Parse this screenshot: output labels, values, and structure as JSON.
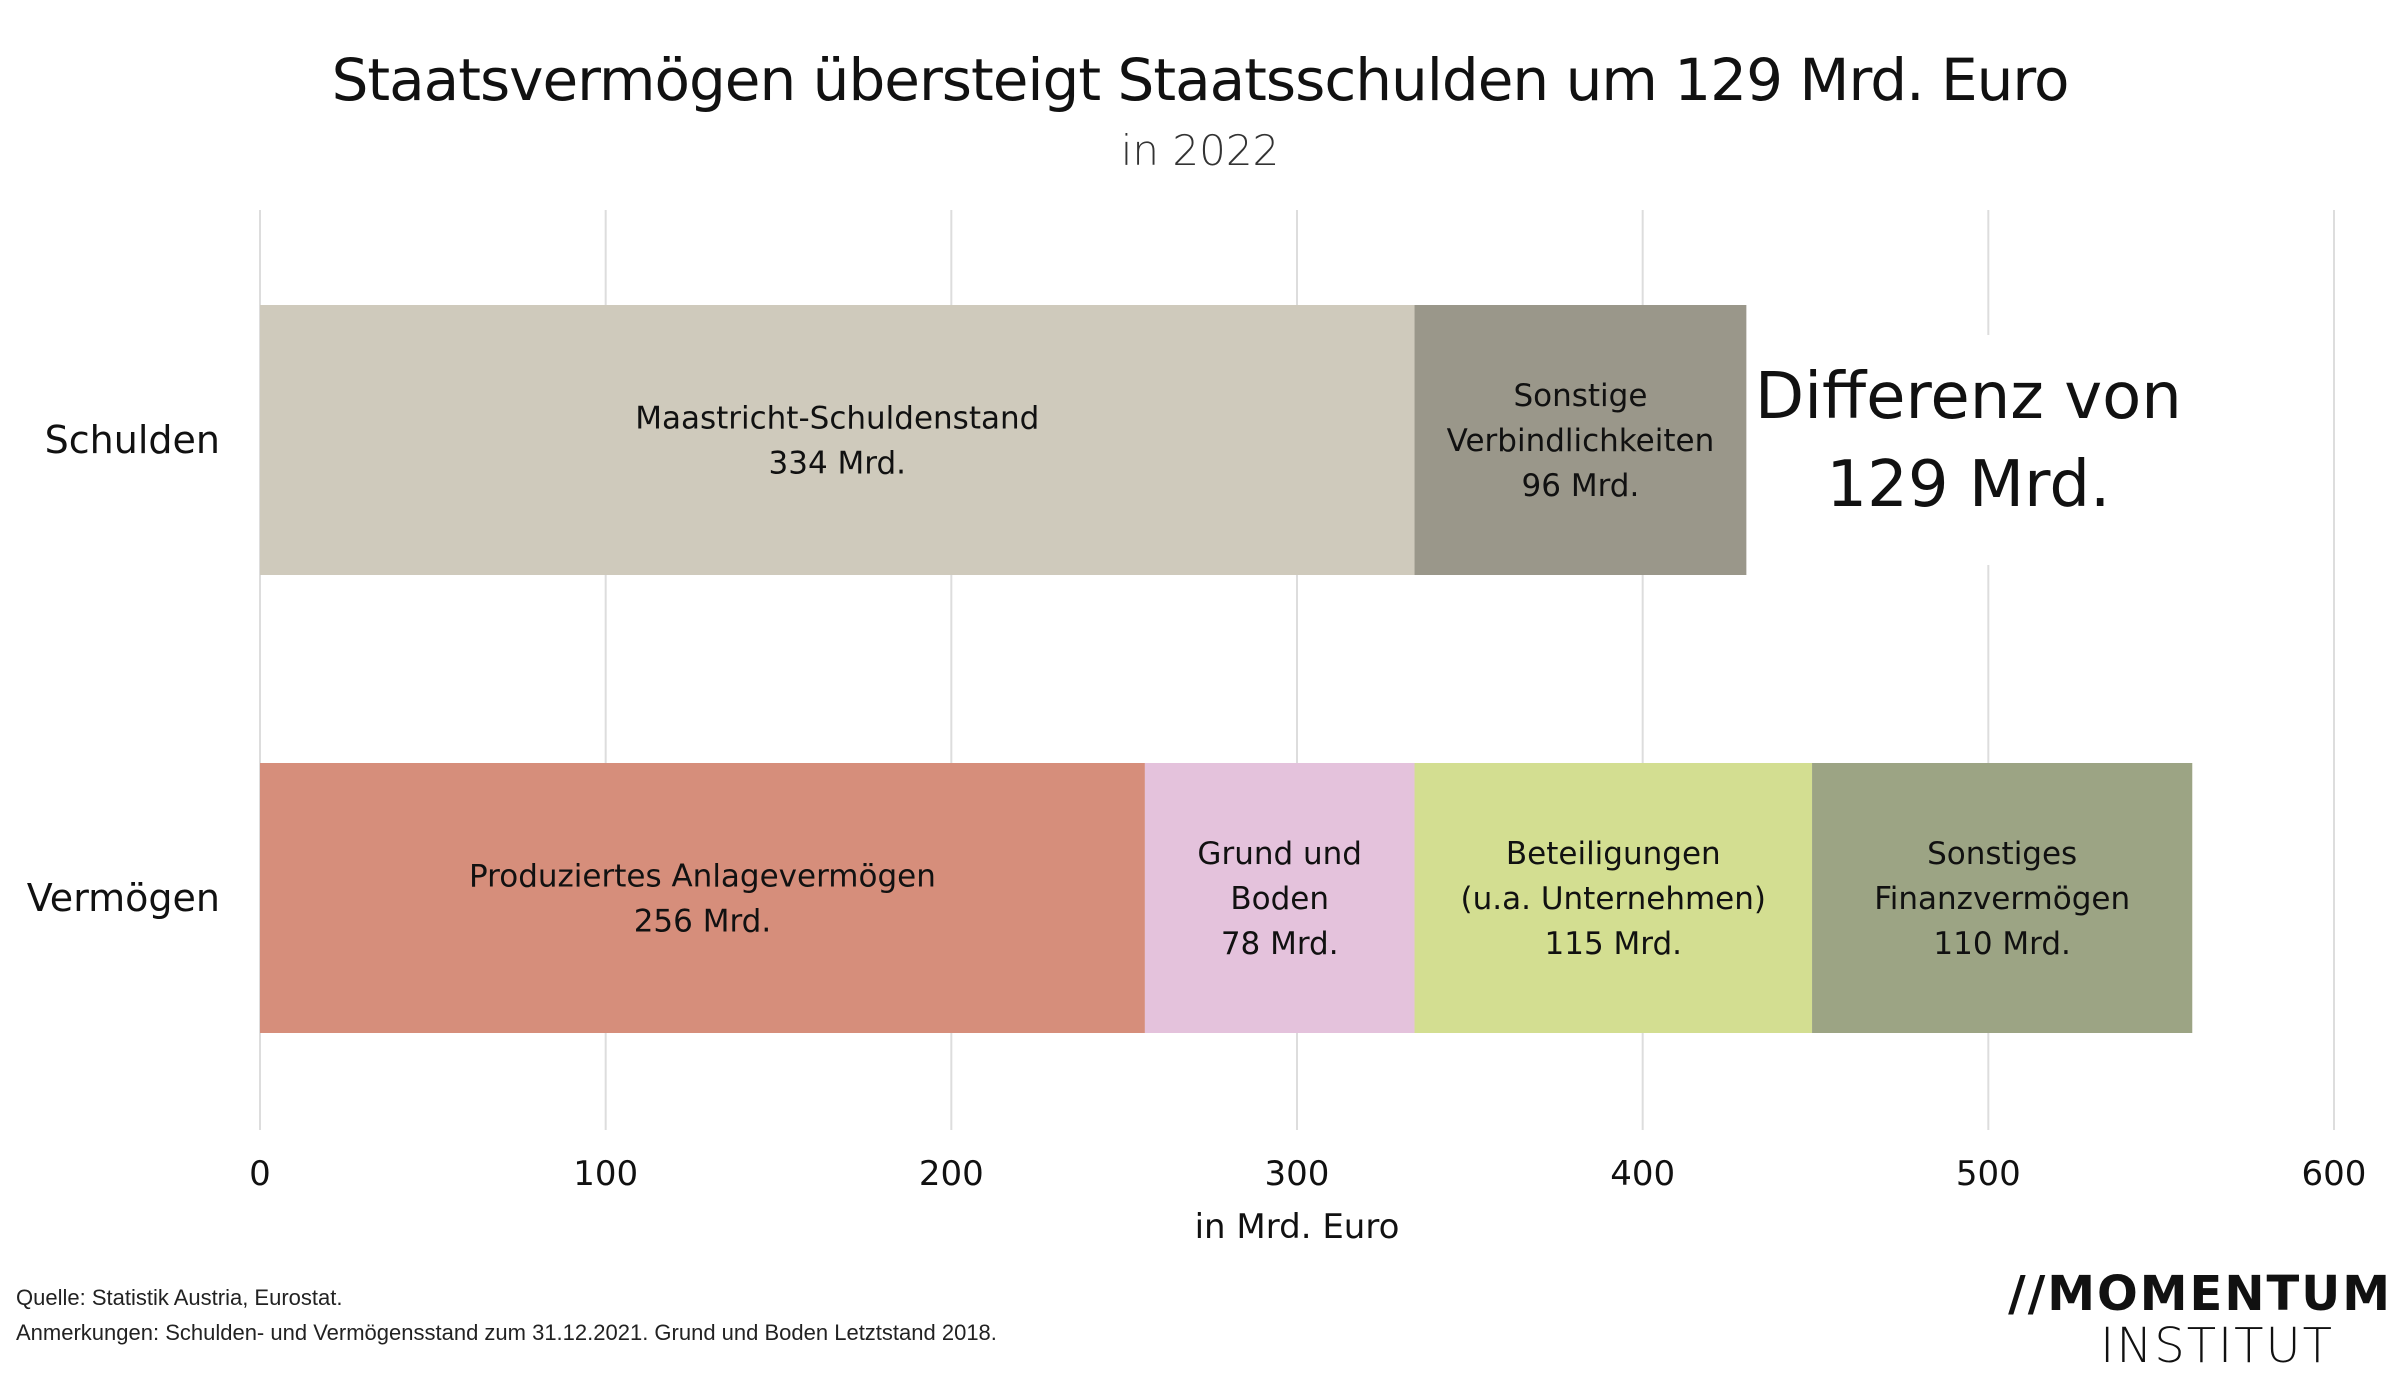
{
  "chart_data": {
    "type": "bar",
    "orientation": "horizontal",
    "stacked": true,
    "title": "Staatsvermögen übersteigt Staatsschulden um 129 Mrd. Euro",
    "subtitle": "in 2022",
    "xlabel": "in Mrd. Euro",
    "xlim": [
      0,
      600
    ],
    "xticks": [
      0,
      100,
      200,
      300,
      400,
      500,
      600
    ],
    "grid": true,
    "categories": [
      "Schulden",
      "Vermögen"
    ],
    "bars": [
      {
        "category": "Schulden",
        "segments": [
          {
            "label_lines": [
              "Maastricht-Schuldenstand",
              "334 Mrd."
            ],
            "value": 334,
            "color": "#cfcabc"
          },
          {
            "label_lines": [
              "Sonstige",
              "Verbindlichkeiten",
              "96 Mrd."
            ],
            "value": 96,
            "color": "#9a978a"
          }
        ],
        "annotation_lines": [
          "Differenz von",
          "129 Mrd."
        ]
      },
      {
        "category": "Vermögen",
        "segments": [
          {
            "label_lines": [
              "Produziertes Anlagevermögen",
              "256 Mrd."
            ],
            "value": 256,
            "color": "#d68e7b"
          },
          {
            "label_lines": [
              "Grund und",
              "Boden",
              "78 Mrd."
            ],
            "value": 78,
            "color": "#e4c2dc"
          },
          {
            "label_lines": [
              "Beteiligungen",
              "(u.a. Unternehmen)",
              "115 Mrd."
            ],
            "value": 115,
            "color": "#d3de91"
          },
          {
            "label_lines": [
              "Sonstiges",
              "Finanzvermögen",
              "110 Mrd."
            ],
            "value": 110,
            "color": "#9ca484"
          }
        ]
      }
    ]
  },
  "source": "Quelle: Statistik Austria, Eurostat.",
  "note": "Anmerkungen: Schulden- und Vermögensstand zum 31.12.2021. Grund und Boden Letztstand 2018.",
  "logo": {
    "line1": "MOMENTUM",
    "line2": "INSTITUT",
    "mark": "//"
  }
}
